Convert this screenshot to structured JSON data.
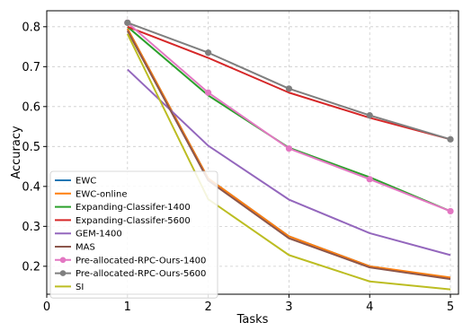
{
  "chart_data": {
    "type": "line",
    "title": "",
    "xlabel": "Tasks",
    "ylabel": "Accuracy",
    "xlim": [
      0,
      5.1
    ],
    "ylim": [
      0.13,
      0.84
    ],
    "x_ticks": [
      0,
      1,
      2,
      3,
      4,
      5
    ],
    "y_ticks": [
      0.2,
      0.3,
      0.4,
      0.5,
      0.6,
      0.7,
      0.8
    ],
    "y_tick_labels": [
      "0.2",
      "0.3",
      "0.4",
      "0.5",
      "0.6",
      "0.7",
      "0.8"
    ],
    "grid": true,
    "legend_position": "lower-left",
    "x": [
      1,
      2,
      3,
      4,
      5
    ],
    "series": [
      {
        "name": "EWC",
        "color": "#1f77b4",
        "marker": "none",
        "values": [
          0.795,
          0.42,
          0.275,
          0.2,
          0.17
        ]
      },
      {
        "name": "EWC-online",
        "color": "#ff7f0e",
        "marker": "none",
        "values": [
          0.795,
          0.42,
          0.275,
          0.2,
          0.172
        ]
      },
      {
        "name": "Expanding-Classifer-1400",
        "color": "#2ca02c",
        "marker": "none",
        "values": [
          0.8,
          0.628,
          0.497,
          0.423,
          0.338
        ]
      },
      {
        "name": "Expanding-Classifer-5600",
        "color": "#d62728",
        "marker": "none",
        "values": [
          0.8,
          0.722,
          0.635,
          0.572,
          0.518
        ]
      },
      {
        "name": "GEM-1400",
        "color": "#9467bd",
        "marker": "none",
        "values": [
          0.693,
          0.502,
          0.367,
          0.283,
          0.228
        ]
      },
      {
        "name": "MAS",
        "color": "#8c564b",
        "marker": "none",
        "values": [
          0.79,
          0.415,
          0.27,
          0.197,
          0.168
        ]
      },
      {
        "name": "Pre-allocated-RPC-Ours-1400",
        "color": "#e377c2",
        "marker": "circle",
        "values": [
          0.81,
          0.635,
          0.495,
          0.418,
          0.338
        ]
      },
      {
        "name": "Pre-allocated-RPC-Ours-5600",
        "color": "#7f7f7f",
        "marker": "circle",
        "values": [
          0.81,
          0.735,
          0.645,
          0.578,
          0.518
        ]
      },
      {
        "name": "SI",
        "color": "#bcbd22",
        "marker": "none",
        "values": [
          0.782,
          0.368,
          0.228,
          0.162,
          0.142
        ]
      }
    ]
  }
}
